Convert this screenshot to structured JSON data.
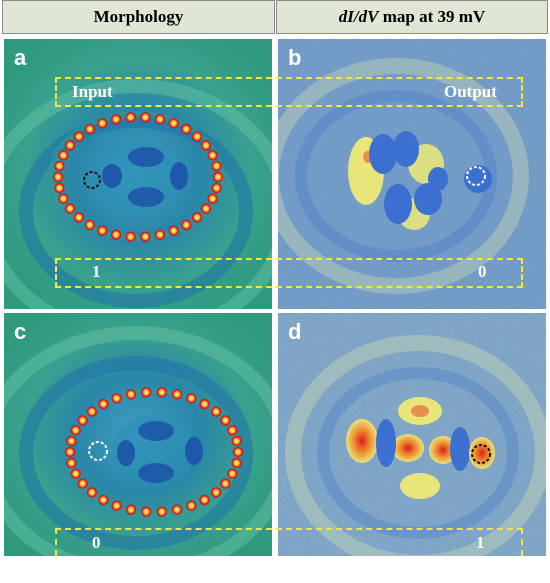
{
  "header": {
    "morphology": "Morphology",
    "map_prefix": "dI/dV",
    "map_suffix": " map at 39 mV"
  },
  "panels": {
    "a": {
      "label": "a",
      "input_text": "Input",
      "state_text": "1"
    },
    "b": {
      "label": "b",
      "output_text": "Output",
      "state_text": "0"
    },
    "c": {
      "label": "c",
      "state_text": "0"
    },
    "d": {
      "label": "d",
      "state_text": "1"
    }
  },
  "colors": {
    "stm_background": "#2f9a94",
    "map_background": "#6e98c8",
    "adatom": "#e8232a",
    "highlight_box": "#f2e83a"
  }
}
